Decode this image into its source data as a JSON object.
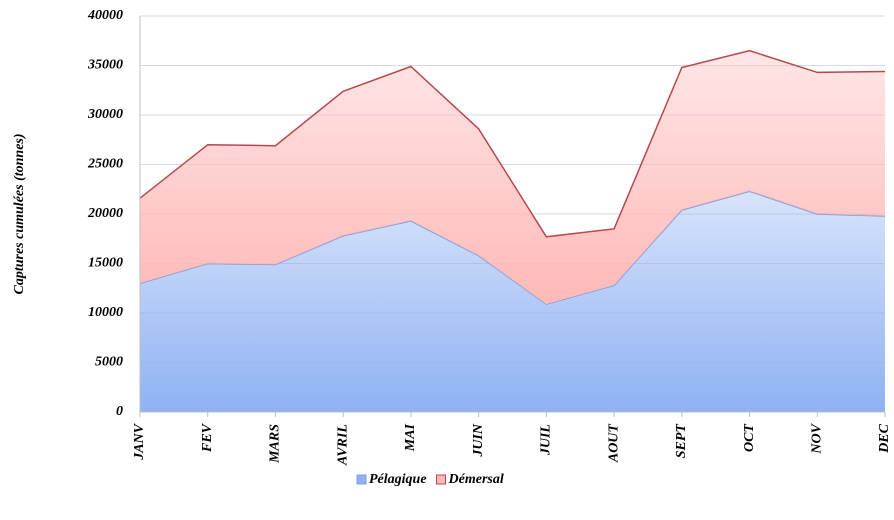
{
  "chart_data": {
    "type": "stacked_area",
    "y_label": "Captures cumulées (tonnes)",
    "categories": [
      "JANV",
      "FEV",
      "MARS",
      "AVRIL",
      "MAI",
      "JUIN",
      "JUIL",
      "AOUT",
      "SEPT",
      "OCT",
      "NOV",
      "DEC"
    ],
    "series": [
      {
        "name": "Pélagique",
        "color": "#8fb1f3",
        "line_color": "#7f9fd6",
        "values": [
          13000,
          15000,
          14900,
          17800,
          19300,
          15800,
          10900,
          12800,
          20400,
          22300,
          20000,
          19800
        ]
      },
      {
        "name": "Démersal",
        "color": "#ffb8b8",
        "line_color": "#b8474a",
        "values": [
          8600,
          12000,
          12000,
          14600,
          15600,
          12800,
          6800,
          5700,
          14400,
          14200,
          14300,
          14600
        ]
      }
    ],
    "ylim": [
      0,
      40000
    ],
    "yticks": [
      0,
      5000,
      10000,
      15000,
      20000,
      25000,
      30000,
      35000,
      40000
    ],
    "grid": true,
    "legend": "bottom"
  }
}
